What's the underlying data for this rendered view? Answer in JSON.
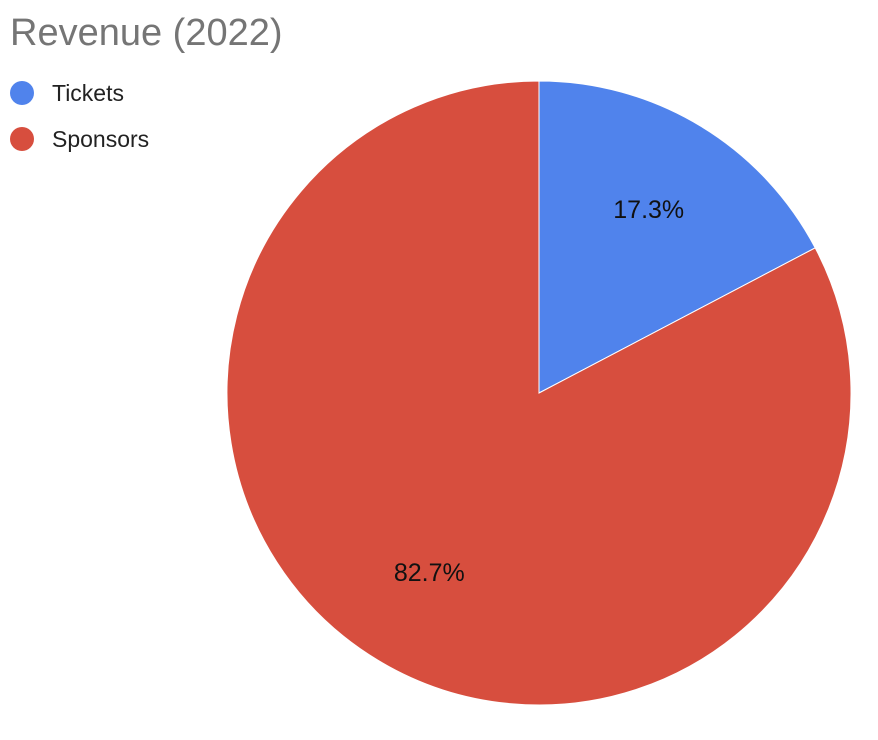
{
  "chart_data": {
    "type": "pie",
    "title": "Revenue (2022)",
    "categories": [
      "Tickets",
      "Sponsors"
    ],
    "values": [
      17.3,
      82.7
    ],
    "value_labels": [
      "17.3%",
      "82.7%"
    ],
    "colors": [
      "#5083ec",
      "#d74e3e"
    ],
    "legend_position": "top-left",
    "start_angle": "12 o'clock",
    "direction": "clockwise"
  }
}
